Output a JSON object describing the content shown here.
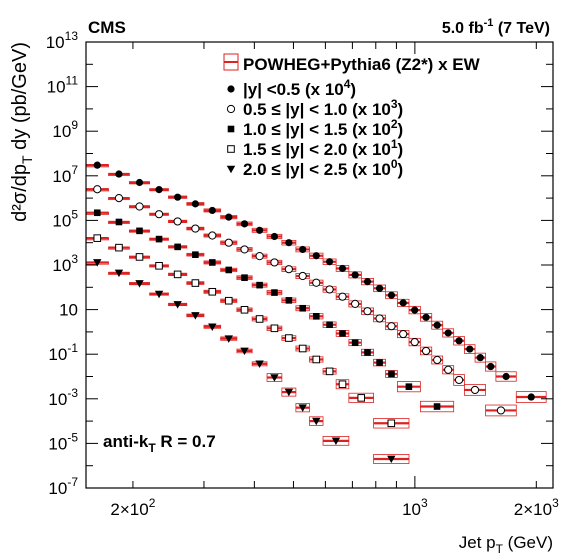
{
  "header": {
    "experiment": "CMS",
    "luminosity_main": "5.0 fb",
    "luminosity_exp": "-1",
    "energy": "(7 TeV)"
  },
  "annotation": {
    "prefix": "anti-k",
    "sub": "T",
    "suffix": " R = 0.7"
  },
  "axes": {
    "x_main": "Jet p",
    "x_sub": "T",
    "x_unit": " (GeV)",
    "y_label": "d²σ/dp_T dy (pb/GeV)",
    "x_ticks": [
      {
        "value": 200,
        "mantissa": "2×10",
        "exp": "2"
      },
      {
        "value": 1000,
        "mantissa": "10",
        "exp": "3"
      },
      {
        "value": 2000,
        "mantissa": "2×10",
        "exp": "3"
      }
    ],
    "y_ticks": [
      {
        "value": 10000000000000.0,
        "label": "10",
        "exp": "13"
      },
      {
        "value": 100000000000.0,
        "label": "10",
        "exp": "11"
      },
      {
        "value": 1000000000.0,
        "label": "10",
        "exp": "9"
      },
      {
        "value": 10000000.0,
        "label": "10",
        "exp": "7"
      },
      {
        "value": 100000.0,
        "label": "10",
        "exp": "5"
      },
      {
        "value": 1000.0,
        "label": "10",
        "exp": "3"
      },
      {
        "value": 10,
        "label": "10",
        "exp": ""
      },
      {
        "value": 0.1,
        "label": "10",
        "exp": "-1"
      },
      {
        "value": 0.001,
        "label": "10",
        "exp": "-3"
      },
      {
        "value": 1e-05,
        "label": "10",
        "exp": "-5"
      },
      {
        "value": 1e-07,
        "label": "10",
        "exp": "-7"
      }
    ]
  },
  "legend": {
    "placement": "top-right",
    "theory": "POWHEG+Pythia6 (Z2*) x EW",
    "entries": [
      {
        "marker": "filled-circle",
        "range": "|y| <0.5",
        "scale_base": "(x 10",
        "scale_exp": "4",
        "scale_end": ")"
      },
      {
        "marker": "open-circle",
        "range": "0.5 ≤ |y| < 1.0",
        "scale_base": "(x 10",
        "scale_exp": "3",
        "scale_end": ")"
      },
      {
        "marker": "filled-square",
        "range": "1.0 ≤ |y| < 1.5",
        "scale_base": "(x 10",
        "scale_exp": "2",
        "scale_end": ")"
      },
      {
        "marker": "open-square",
        "range": "1.5 ≤ |y| < 2.0",
        "scale_base": "(x 10",
        "scale_exp": "1",
        "scale_end": ")"
      },
      {
        "marker": "filled-triangle-down",
        "range": "2.0 ≤ |y| < 2.5",
        "scale_base": "(x 10",
        "scale_exp": "0",
        "scale_end": ")"
      }
    ]
  },
  "colors": {
    "theory": "#dd2222",
    "data": "#000000",
    "axis": "#000000"
  },
  "chart_data": {
    "type": "scatter",
    "x_scale": "log",
    "y_scale": "log",
    "xlim": [
      153,
      2200
    ],
    "ylim": [
      1e-07,
      10000000000000.0
    ],
    "grid": false,
    "series": [
      {
        "name": "|y| <0.5 (x 10^4)",
        "marker": "filled-circle",
        "bins": [
          [
            153,
            174,
            30000000.0
          ],
          [
            174,
            196,
            12000000.0
          ],
          [
            196,
            220,
            5000000.0
          ],
          [
            220,
            245,
            2400000.0
          ],
          [
            245,
            272,
            1100000.0
          ],
          [
            272,
            300,
            550000.0
          ],
          [
            300,
            330,
            280000.0
          ],
          [
            330,
            362,
            140000.0
          ],
          [
            362,
            395,
            70000.0
          ],
          [
            395,
            430,
            36000.0
          ],
          [
            430,
            468,
            19000.0
          ],
          [
            468,
            507,
            10000.0
          ],
          [
            507,
            548,
            5000.0
          ],
          [
            548,
            592,
            2600.0
          ],
          [
            592,
            638,
            1400.0
          ],
          [
            638,
            686,
            700
          ],
          [
            686,
            737,
            360
          ],
          [
            737,
            790,
            180
          ],
          [
            790,
            846,
            90
          ],
          [
            846,
            905,
            44
          ],
          [
            905,
            967,
            20
          ],
          [
            967,
            1032,
            9.5
          ],
          [
            1032,
            1101,
            4.5
          ],
          [
            1101,
            1172,
            2
          ],
          [
            1172,
            1248,
            0.9
          ],
          [
            1248,
            1327,
            0.4
          ],
          [
            1327,
            1410,
            0.17
          ],
          [
            1410,
            1497,
            0.07
          ],
          [
            1497,
            1588,
            0.028
          ],
          [
            1588,
            1784,
            0.01
          ],
          [
            1784,
            2116,
            0.0012
          ]
        ]
      },
      {
        "name": "0.5 ≤ |y| < 1.0 (x 10^3)",
        "marker": "open-circle",
        "bins": [
          [
            153,
            174,
            2500000.0
          ],
          [
            174,
            196,
            1000000.0
          ],
          [
            196,
            220,
            420000.0
          ],
          [
            220,
            245,
            190000.0
          ],
          [
            245,
            272,
            90000.0
          ],
          [
            272,
            300,
            43000.0
          ],
          [
            300,
            330,
            21000.0
          ],
          [
            330,
            362,
            10000.0
          ],
          [
            362,
            395,
            5000.0
          ],
          [
            395,
            430,
            2500.0
          ],
          [
            430,
            468,
            1300.0
          ],
          [
            468,
            507,
            650
          ],
          [
            507,
            548,
            320
          ],
          [
            548,
            592,
            160
          ],
          [
            592,
            638,
            80
          ],
          [
            638,
            686,
            38
          ],
          [
            686,
            737,
            18
          ],
          [
            737,
            790,
            8.5
          ],
          [
            790,
            846,
            4
          ],
          [
            846,
            905,
            1.8
          ],
          [
            905,
            967,
            0.8
          ],
          [
            967,
            1032,
            0.35
          ],
          [
            1032,
            1101,
            0.14
          ],
          [
            1101,
            1172,
            0.055
          ],
          [
            1172,
            1248,
            0.02
          ],
          [
            1248,
            1327,
            0.007
          ],
          [
            1327,
            1497,
            0.0025
          ],
          [
            1497,
            1784,
            0.0003
          ]
        ]
      },
      {
        "name": "1.0 ≤ |y| < 1.5 (x 10^2)",
        "marker": "filled-square",
        "bins": [
          [
            153,
            174,
            220000.0
          ],
          [
            174,
            196,
            85000.0
          ],
          [
            196,
            220,
            34000.0
          ],
          [
            220,
            245,
            14500.0
          ],
          [
            245,
            272,
            6500.0
          ],
          [
            272,
            300,
            2900.0
          ],
          [
            300,
            330,
            1300.0
          ],
          [
            330,
            362,
            600
          ],
          [
            362,
            395,
            270
          ],
          [
            395,
            430,
            125
          ],
          [
            430,
            468,
            58
          ],
          [
            468,
            507,
            26
          ],
          [
            507,
            548,
            11.5
          ],
          [
            548,
            592,
            5
          ],
          [
            592,
            638,
            2.1
          ],
          [
            638,
            686,
            0.85
          ],
          [
            686,
            737,
            0.33
          ],
          [
            737,
            790,
            0.12
          ],
          [
            790,
            846,
            0.042
          ],
          [
            846,
            905,
            0.013
          ],
          [
            905,
            1032,
            0.0035
          ],
          [
            1032,
            1248,
            0.00045
          ]
        ]
      },
      {
        "name": "1.5 ≤ |y| < 2.0 (x 10^1)",
        "marker": "open-square",
        "bins": [
          [
            153,
            174,
            16000.0
          ],
          [
            174,
            196,
            6000.0
          ],
          [
            196,
            220,
            2300.0
          ],
          [
            220,
            245,
            920
          ],
          [
            245,
            272,
            380
          ],
          [
            272,
            300,
            155
          ],
          [
            300,
            330,
            63
          ],
          [
            330,
            362,
            25
          ],
          [
            362,
            395,
            9.8
          ],
          [
            395,
            430,
            3.8
          ],
          [
            430,
            468,
            1.45
          ],
          [
            468,
            507,
            0.53
          ],
          [
            507,
            548,
            0.18
          ],
          [
            548,
            592,
            0.058
          ],
          [
            592,
            638,
            0.017
          ],
          [
            638,
            686,
            0.0045
          ],
          [
            686,
            790,
            0.0011
          ],
          [
            790,
            967,
            8e-05
          ]
        ]
      },
      {
        "name": "2.0 ≤ |y| < 2.5 (x 10^0)",
        "marker": "filled-triangle-down",
        "bins": [
          [
            153,
            174,
            1300.0
          ],
          [
            174,
            196,
            440
          ],
          [
            196,
            220,
            150
          ],
          [
            220,
            245,
            50
          ],
          [
            245,
            272,
            17
          ],
          [
            272,
            300,
            5.5
          ],
          [
            300,
            330,
            1.7
          ],
          [
            330,
            362,
            0.5
          ],
          [
            362,
            395,
            0.14
          ],
          [
            395,
            430,
            0.037
          ],
          [
            430,
            468,
            0.009
          ],
          [
            468,
            507,
            0.002
          ],
          [
            507,
            548,
            0.0004
          ],
          [
            548,
            592,
            0.0001
          ],
          [
            592,
            686,
            1.3e-05
          ],
          [
            790,
            967,
            2e-06
          ]
        ]
      }
    ]
  }
}
